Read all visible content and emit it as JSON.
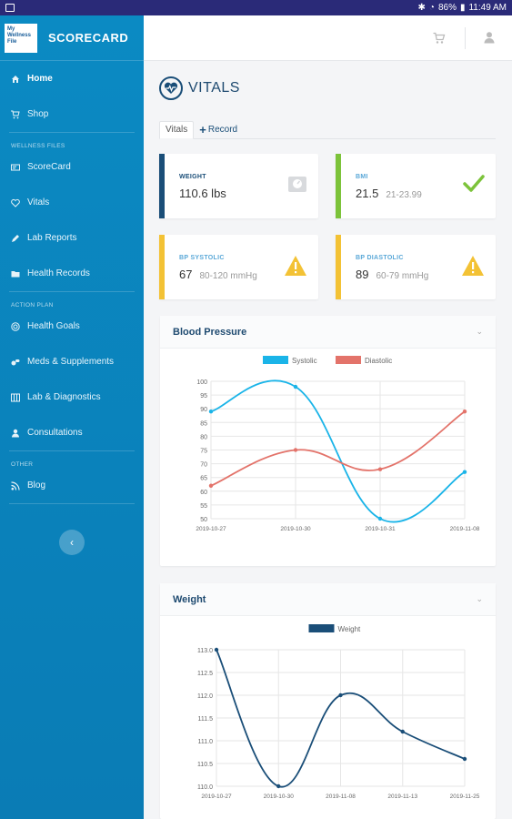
{
  "status_bar": {
    "battery": "86%",
    "time": "11:49 AM"
  },
  "brand": {
    "logo_text": "My Wellness File",
    "name": "SCORECARD"
  },
  "sidebar": {
    "items": [
      {
        "label": "Home",
        "icon": "home-icon"
      },
      {
        "label": "Shop",
        "icon": "cart-icon"
      }
    ],
    "section_wellness": "WELLNESS FILES",
    "wellness_items": [
      {
        "label": "ScoreCard",
        "icon": "card-icon"
      },
      {
        "label": "Vitals",
        "icon": "heart-icon"
      },
      {
        "label": "Lab Reports",
        "icon": "pencil-icon"
      },
      {
        "label": "Health Records",
        "icon": "folder-icon"
      }
    ],
    "section_action": "ACTION PLAN",
    "action_items": [
      {
        "label": "Health Goals",
        "icon": "target-icon"
      },
      {
        "label": "Meds & Supplements",
        "icon": "pills-icon"
      },
      {
        "label": "Lab & Diagnostics",
        "icon": "lab-icon"
      },
      {
        "label": "Consultations",
        "icon": "user-icon"
      }
    ],
    "section_other": "OTHER",
    "other_items": [
      {
        "label": "Blog",
        "icon": "rss-icon"
      }
    ],
    "collapse_icon": "‹"
  },
  "page": {
    "title": "VITALS",
    "tabs": {
      "vitals": "Vitals",
      "record": "Record"
    }
  },
  "stats": {
    "weight": {
      "label": "WEIGHT",
      "value": "110.6 lbs",
      "color": "#1a4e78"
    },
    "bmi": {
      "label": "BMI",
      "value": "21.5",
      "range": "21-23.99",
      "color": "#7cc33a"
    },
    "bp_systolic": {
      "label": "BP SYSTOLIC",
      "value": "67",
      "range": "80-120 mmHg",
      "color": "#f3c235"
    },
    "bp_diastolic": {
      "label": "BP DIASTOLIC",
      "value": "89",
      "range": "60-79 mmHg",
      "color": "#f3c235"
    }
  },
  "panels": {
    "bp_title": "Blood Pressure",
    "weight_title": "Weight"
  },
  "chart_data": [
    {
      "type": "line",
      "title": "Blood Pressure",
      "categories": [
        "2019-10-27",
        "2019-10-30",
        "2019-10-31",
        "2019-11-08"
      ],
      "series": [
        {
          "name": "Systolic",
          "values": [
            89,
            98,
            50,
            67
          ],
          "color": "#1ab4e8"
        },
        {
          "name": "Diastolic",
          "values": [
            62,
            75,
            68,
            89
          ],
          "color": "#e3736a"
        }
      ],
      "ylim": [
        50,
        100
      ],
      "yticks": [
        50,
        55,
        60,
        65,
        70,
        75,
        80,
        85,
        90,
        95,
        100
      ],
      "legend": "top",
      "grid": true
    },
    {
      "type": "line",
      "title": "Weight",
      "categories": [
        "2019-10-27",
        "2019-10-30",
        "2019-11-08",
        "2019-11-13",
        "2019-11-25"
      ],
      "series": [
        {
          "name": "Weight",
          "values": [
            113.0,
            110.0,
            112.0,
            111.2,
            110.6
          ],
          "color": "#1a4e78"
        }
      ],
      "ylim": [
        110.0,
        113.0
      ],
      "yticks": [
        "110.0",
        "110.5",
        "111.0",
        "111.5",
        "112.0",
        "112.5",
        "113.0"
      ],
      "legend": "top",
      "grid": true
    }
  ]
}
